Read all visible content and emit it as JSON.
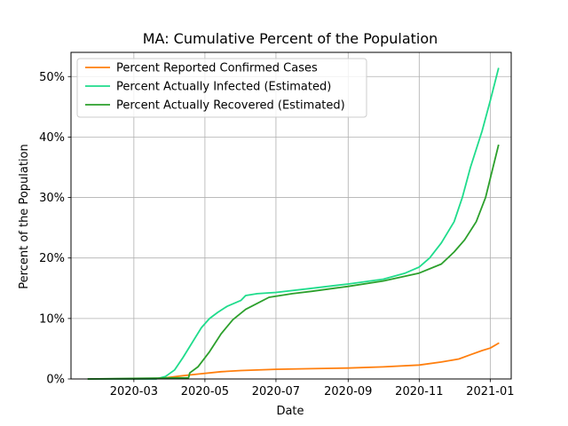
{
  "chart_data": {
    "type": "line",
    "title": "MA: Cumulative Percent of the Population",
    "xlabel": "Date",
    "ylabel": "Percent of the Population",
    "x_ticks": [
      "2020-03",
      "2020-05",
      "2020-07",
      "2020-09",
      "2020-11",
      "2021-01"
    ],
    "y_ticks": [
      "0%",
      "10%",
      "20%",
      "30%",
      "40%",
      "50%"
    ],
    "x_range": [
      "2020-01-07",
      "2021-01-19"
    ],
    "y_range": [
      0,
      54
    ],
    "grid": true,
    "legend_position": "upper-left",
    "series": [
      {
        "name": "Percent Reported Confirmed Cases",
        "color": "#ff7f0e",
        "points": [
          [
            "2020-01-22",
            0
          ],
          [
            "2020-03-01",
            0
          ],
          [
            "2020-03-25",
            0.1
          ],
          [
            "2020-04-10",
            0.5
          ],
          [
            "2020-04-25",
            0.8
          ],
          [
            "2020-05-15",
            1.2
          ],
          [
            "2020-06-01",
            1.4
          ],
          [
            "2020-07-01",
            1.6
          ],
          [
            "2020-08-01",
            1.7
          ],
          [
            "2020-09-01",
            1.8
          ],
          [
            "2020-10-01",
            2.0
          ],
          [
            "2020-11-01",
            2.3
          ],
          [
            "2020-11-20",
            2.8
          ],
          [
            "2020-12-05",
            3.3
          ],
          [
            "2020-12-15",
            4.0
          ],
          [
            "2020-12-25",
            4.7
          ],
          [
            "2021-01-01",
            5.1
          ],
          [
            "2021-01-08",
            5.9
          ]
        ]
      },
      {
        "name": "Percent Actually Infected (Estimated)",
        "color": "#1fdc8c",
        "points": [
          [
            "2020-01-22",
            0
          ],
          [
            "2020-03-20",
            0
          ],
          [
            "2020-03-28",
            0.4
          ],
          [
            "2020-04-05",
            1.5
          ],
          [
            "2020-04-12",
            3.5
          ],
          [
            "2020-04-20",
            6.0
          ],
          [
            "2020-04-28",
            8.5
          ],
          [
            "2020-05-05",
            10.0
          ],
          [
            "2020-05-12",
            11.0
          ],
          [
            "2020-05-20",
            12.0
          ],
          [
            "2020-06-01",
            13.0
          ],
          [
            "2020-06-05",
            13.8
          ],
          [
            "2020-06-15",
            14.1
          ],
          [
            "2020-07-01",
            14.3
          ],
          [
            "2020-08-01",
            15.0
          ],
          [
            "2020-09-01",
            15.7
          ],
          [
            "2020-10-01",
            16.5
          ],
          [
            "2020-10-20",
            17.5
          ],
          [
            "2020-11-01",
            18.5
          ],
          [
            "2020-11-10",
            20.0
          ],
          [
            "2020-11-20",
            22.5
          ],
          [
            "2020-12-01",
            26.0
          ],
          [
            "2020-12-08",
            30.0
          ],
          [
            "2020-12-15",
            35.0
          ],
          [
            "2020-12-25",
            41.0
          ],
          [
            "2021-01-01",
            46.0
          ],
          [
            "2021-01-08",
            51.3
          ]
        ]
      },
      {
        "name": "Percent Actually Recovered (Estimated)",
        "color": "#2ca02c",
        "points": [
          [
            "2020-01-22",
            0
          ],
          [
            "2020-04-17",
            0.2
          ],
          [
            "2020-04-18",
            1.0
          ],
          [
            "2020-04-25",
            2.0
          ],
          [
            "2020-05-05",
            4.5
          ],
          [
            "2020-05-15",
            7.5
          ],
          [
            "2020-05-25",
            9.8
          ],
          [
            "2020-06-05",
            11.5
          ],
          [
            "2020-06-15",
            12.5
          ],
          [
            "2020-06-25",
            13.5
          ],
          [
            "2020-07-15",
            14.1
          ],
          [
            "2020-08-01",
            14.5
          ],
          [
            "2020-09-01",
            15.3
          ],
          [
            "2020-10-01",
            16.2
          ],
          [
            "2020-11-01",
            17.5
          ],
          [
            "2020-11-20",
            19.0
          ],
          [
            "2020-12-01",
            21.0
          ],
          [
            "2020-12-10",
            23.0
          ],
          [
            "2020-12-20",
            26.0
          ],
          [
            "2020-12-28",
            30.0
          ],
          [
            "2021-01-08",
            38.6
          ]
        ]
      }
    ]
  }
}
